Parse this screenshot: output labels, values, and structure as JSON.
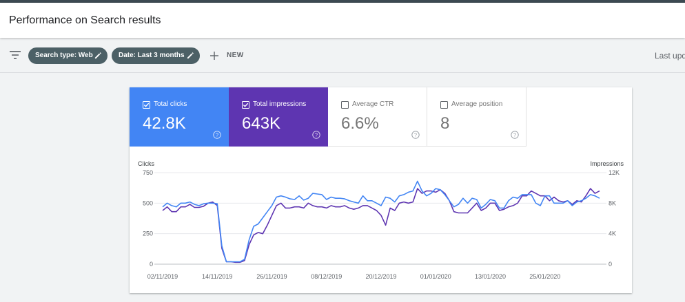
{
  "header": {
    "title": "Performance on Search results"
  },
  "filterbar": {
    "chips": [
      {
        "label": "Search type: Web"
      },
      {
        "label": "Date: Last 3 months"
      }
    ],
    "new_label": "NEW",
    "last_updated": "Last upd"
  },
  "metrics": [
    {
      "label": "Total clicks",
      "value": "42.8K",
      "checked": true,
      "color": "#4285f4"
    },
    {
      "label": "Total impressions",
      "value": "643K",
      "checked": true,
      "color": "#5e35b1"
    },
    {
      "label": "Average CTR",
      "value": "6.6%",
      "checked": false
    },
    {
      "label": "Average position",
      "value": "8",
      "checked": false
    }
  ],
  "chart_data": {
    "type": "line",
    "left_axis_title": "Clicks",
    "right_axis_title": "Impressions",
    "left_ticks": [
      "750",
      "500",
      "250",
      "0"
    ],
    "left_tick_values": [
      750,
      500,
      250,
      0
    ],
    "right_ticks": [
      "12K",
      "8K",
      "4K",
      "0"
    ],
    "right_tick_values": [
      12000,
      8000,
      4000,
      0
    ],
    "ylim_left": [
      0,
      750
    ],
    "ylim_right": [
      0,
      12000
    ],
    "x_ticks": [
      "02/11/2019",
      "14/11/2019",
      "26/11/2019",
      "08/12/2019",
      "20/12/2019",
      "01/01/2020",
      "13/01/2020",
      "25/01/2020"
    ],
    "x_tick_index": [
      0,
      12,
      24,
      36,
      48,
      60,
      72,
      84
    ],
    "grid": true,
    "series": [
      {
        "name": "Total clicks",
        "axis": "left",
        "color": "#4285f4",
        "values": [
          470,
          500,
          480,
          470,
          500,
          500,
          510,
          490,
          480,
          495,
          500,
          500,
          495,
          150,
          20,
          20,
          20,
          20,
          40,
          200,
          310,
          330,
          380,
          430,
          480,
          550,
          560,
          550,
          535,
          530,
          560,
          525,
          540,
          580,
          575,
          570,
          530,
          550,
          540,
          540,
          535,
          520,
          510,
          500,
          560,
          520,
          520,
          500,
          480,
          550,
          540,
          510,
          560,
          570,
          590,
          600,
          680,
          600,
          560,
          580,
          620,
          610,
          570,
          520,
          470,
          490,
          540,
          500,
          540,
          530,
          460,
          490,
          530,
          520,
          460,
          460,
          520,
          550,
          540,
          570,
          570,
          570,
          500,
          480,
          560,
          560,
          500,
          500,
          500,
          520,
          480,
          510,
          520,
          540,
          570,
          560,
          540
        ]
      },
      {
        "name": "Total impressions",
        "axis": "left",
        "color": "#5e35b1",
        "values": [
          440,
          470,
          430,
          430,
          470,
          470,
          490,
          465,
          465,
          475,
          500,
          510,
          480,
          130,
          20,
          20,
          15,
          15,
          30,
          160,
          240,
          260,
          250,
          320,
          400,
          480,
          500,
          460,
          460,
          470,
          470,
          460,
          500,
          480,
          470,
          470,
          460,
          480,
          470,
          470,
          480,
          460,
          450,
          460,
          480,
          480,
          460,
          440,
          400,
          320,
          460,
          440,
          500,
          510,
          500,
          510,
          620,
          580,
          600,
          600,
          590,
          610,
          580,
          520,
          430,
          420,
          420,
          420,
          460,
          500,
          440,
          460,
          500,
          500,
          440,
          450,
          470,
          480,
          500,
          560,
          560,
          600,
          580,
          560,
          560,
          520,
          550,
          520,
          510,
          520,
          490,
          520,
          510,
          560,
          620,
          580,
          600
        ]
      }
    ]
  }
}
